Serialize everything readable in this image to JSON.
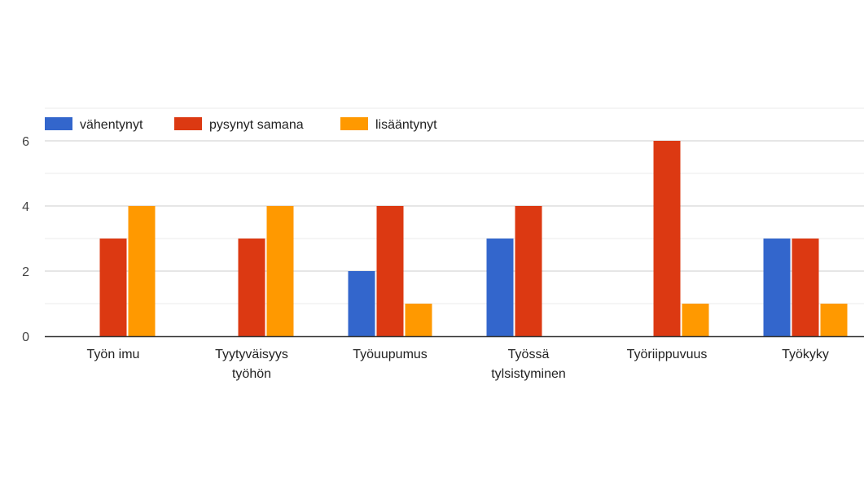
{
  "chart_data": {
    "type": "bar",
    "categories": [
      [
        "Työn imu"
      ],
      [
        "Tyytyväisyys",
        "työhön"
      ],
      [
        "Työuupumus"
      ],
      [
        "Työssä",
        "tylsistyminen"
      ],
      [
        "Työriippuvuus"
      ],
      [
        "Työkyky"
      ]
    ],
    "series": [
      {
        "name": "vähentynyt",
        "color": "#3366cc",
        "values": [
          0,
          0,
          2,
          3,
          0,
          3
        ]
      },
      {
        "name": "pysynyt samana",
        "color": "#dc3912",
        "values": [
          3,
          3,
          4,
          4,
          6,
          3
        ]
      },
      {
        "name": "lisääntynyt",
        "color": "#ff9900",
        "values": [
          4,
          4,
          1,
          0,
          1,
          1
        ]
      }
    ],
    "yticks": [
      "0",
      "2",
      "4",
      "6"
    ],
    "ylim": [
      0,
      7
    ],
    "grid": true,
    "legend_position": "top-left"
  }
}
